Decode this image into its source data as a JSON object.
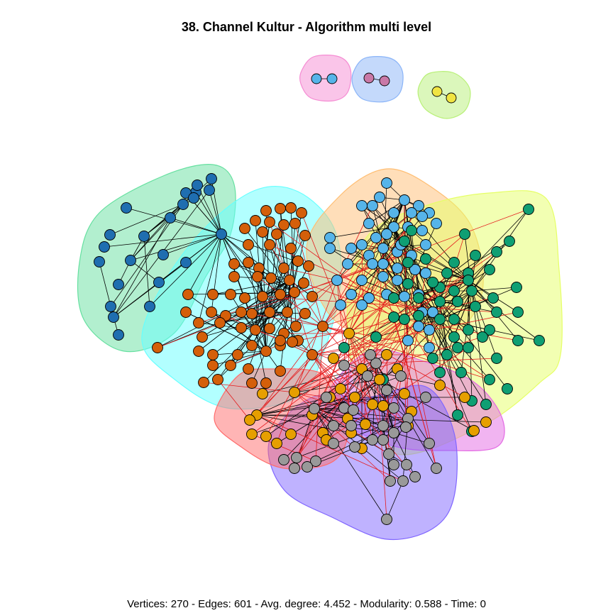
{
  "title": "38. Channel Kultur - Algorithm multi level",
  "footer": "Vertices: 270 - Edges: 601 - Avg. degree: 4.452 - Modularity: 0.588 - Time: 0",
  "stats": {
    "vertices": 270,
    "edges": 601,
    "avg_degree": 4.452,
    "modularity": 0.588,
    "time": 0
  },
  "colors": {
    "node_dark_blue": "#1f6eb0",
    "node_orange": "#d45f0a",
    "node_light_blue": "#56b4e9",
    "node_green": "#0f9f73",
    "node_gold": "#e69f00",
    "node_gray": "#999999",
    "node_mauve": "#c979a7",
    "node_yellow": "#f0e442",
    "node_stroke": "#000000",
    "intra_edge": "#000000",
    "inter_edge": "#e41a1c",
    "hull_mint": "#66e0a0",
    "hull_cyan": "#66ffff",
    "hull_peach": "#ffbe73",
    "hull_yellow": "#e6ff66",
    "hull_magenta": "#e36ae3",
    "hull_violet": "#8066ff",
    "hull_red": "#ff6b6b",
    "hull_pink": "#f58cd3",
    "hull_periwinkle": "#8ab4f8",
    "hull_lime": "#b8f077"
  }
}
